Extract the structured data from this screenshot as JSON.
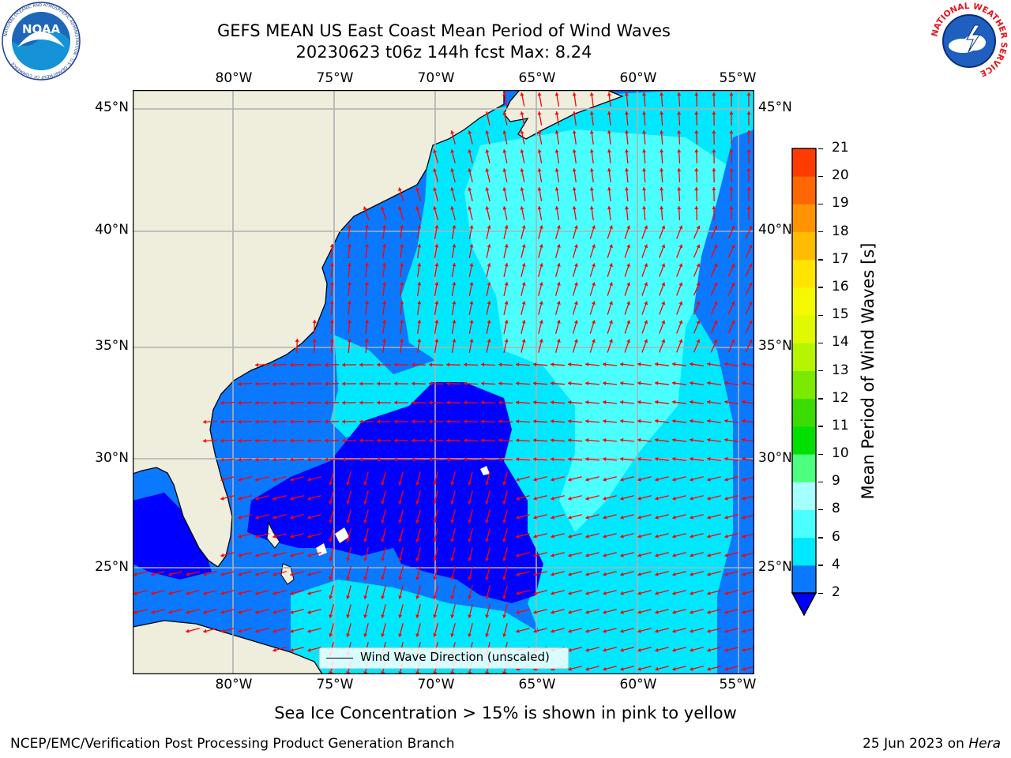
{
  "header": {
    "title_line1": "GEFS MEAN US East Coast Mean Period of Wind Waves",
    "title_line2": "20230623 t06z 144h fcst   Max: 8.24"
  },
  "logos": {
    "noaa_text": "NOAA",
    "noaa_ring_text": "NATIONAL OCEANIC AND ATMOSPHERIC ADMINISTRATION · U.S. DEPARTMENT OF COMMERCE",
    "nws_ring_text": "NATIONAL WEATHER SERVICE"
  },
  "map": {
    "lon_labels": [
      "80°W",
      "75°W",
      "70°W",
      "65°W",
      "60°W",
      "55°W"
    ],
    "lat_labels": [
      "45°N",
      "40°N",
      "35°N",
      "30°N",
      "25°N"
    ],
    "legend_label": "Wind Wave Direction (unscaled)",
    "arrow_color": "#ff0000",
    "land_color": "#efeddc"
  },
  "colorbar": {
    "label": "Mean Period of Wind Waves [s]",
    "tick_labels": [
      "2",
      "4",
      "6",
      "8",
      "9",
      "10",
      "11",
      "12",
      "13",
      "14",
      "15",
      "16",
      "17",
      "18",
      "19",
      "20",
      "21"
    ],
    "colors": [
      "#0a78ff",
      "#00e8ff",
      "#4cffff",
      "#a6ffff",
      "#4dff7f",
      "#00e000",
      "#3cdc00",
      "#7cea00",
      "#b6f400",
      "#e0f800",
      "#f4f800",
      "#ffe400",
      "#ffbc00",
      "#ff9400",
      "#ff6800",
      "#ff3c00",
      "#ff0000"
    ],
    "under_color": "#0000ff"
  },
  "notes": {
    "sea_ice": "Sea Ice Concentration > 15% is shown in pink to yellow",
    "footer_left": "NCEP/EMC/Verification Post Processing Product Generation Branch",
    "footer_date": "25 Jun 2023 on ",
    "footer_machine": "Hera"
  }
}
